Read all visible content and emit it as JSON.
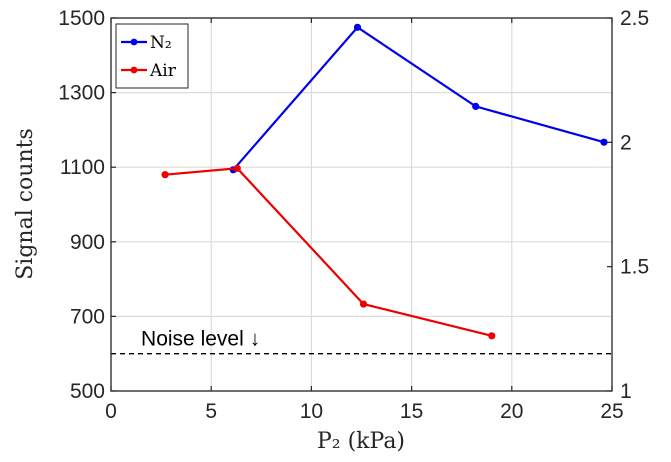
{
  "chart_data": {
    "type": "line",
    "xlabel": "P₂ (kPa)",
    "ylabel": "Signal counts",
    "xlim": [
      0,
      25
    ],
    "ylim": [
      500,
      1500
    ],
    "y2lim": [
      1,
      2.5
    ],
    "x_ticks": [
      "0",
      "5",
      "10",
      "15",
      "20",
      "25"
    ],
    "y_ticks": [
      "500",
      "700",
      "900",
      "1100",
      "1300",
      "1500"
    ],
    "y2_ticks": [
      "1",
      "1.5",
      "2",
      "2.5"
    ],
    "grid": true,
    "legend_position": "top-left",
    "series": [
      {
        "name": "N₂",
        "color": "#0000ee",
        "x": [
          6.1,
          12.3,
          18.2,
          24.6
        ],
        "y": [
          1093,
          1475,
          1263,
          1167
        ]
      },
      {
        "name": "Air",
        "color": "#ee0000",
        "x": [
          2.7,
          6.3,
          12.6,
          19.0
        ],
        "y": [
          1080,
          1097,
          733,
          648
        ]
      }
    ],
    "annotations": [
      {
        "text": "Noise level ↓",
        "x": 1.5,
        "y": 622
      }
    ],
    "reference_line": {
      "y": 600,
      "style": "dashed",
      "color": "#000000"
    }
  }
}
